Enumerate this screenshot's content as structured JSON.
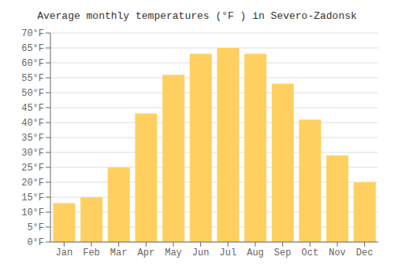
{
  "chart_data": {
    "type": "bar",
    "title": "Average monthly temperatures (°F ) in Severo-Zadonsk",
    "categories": [
      "Jan",
      "Feb",
      "Mar",
      "Apr",
      "May",
      "Jun",
      "Jul",
      "Aug",
      "Sep",
      "Oct",
      "Nov",
      "Dec"
    ],
    "values": [
      13,
      15,
      25,
      43,
      56,
      63,
      65,
      63,
      53,
      41,
      29,
      20
    ],
    "color": "#FFD060",
    "ylim": [
      0,
      70
    ],
    "yticks": [
      {
        "value": 0,
        "label": "0°F"
      },
      {
        "value": 5,
        "label": "5°F"
      },
      {
        "value": 10,
        "label": "10°F"
      },
      {
        "value": 15,
        "label": "15°F"
      },
      {
        "value": 20,
        "label": "20°F"
      },
      {
        "value": 25,
        "label": "25°F"
      },
      {
        "value": 30,
        "label": "30°F"
      },
      {
        "value": 35,
        "label": "35°F"
      },
      {
        "value": 40,
        "label": "40°F"
      },
      {
        "value": 45,
        "label": "45°F"
      },
      {
        "value": 50,
        "label": "50°F"
      },
      {
        "value": 55,
        "label": "55°F"
      },
      {
        "value": 60,
        "label": "60°F"
      },
      {
        "value": 65,
        "label": "65°F"
      },
      {
        "value": 70,
        "label": "70°F"
      }
    ],
    "grid": true
  }
}
